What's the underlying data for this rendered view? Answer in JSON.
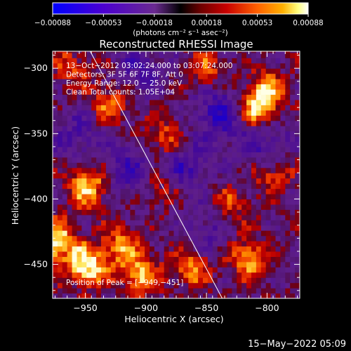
{
  "chart_data": {
    "type": "heatmap",
    "title": "Reconstructed RHESSI Image",
    "xlabel": "Heliocentric X (arcsec)",
    "ylabel": "Heliocentric Y (arcsec)",
    "xlim": [
      -977,
      -773
    ],
    "ylim": [
      -476,
      -287
    ],
    "x_ticks": [
      -950,
      -900,
      -850,
      -800
    ],
    "y_ticks": [
      -300,
      -350,
      -400,
      -450
    ],
    "x_tick_labels": [
      "−950",
      "−900",
      "−850",
      "−800"
    ],
    "y_tick_labels": [
      "−300",
      "−350",
      "−400",
      "−450"
    ],
    "colorbar": {
      "range": [
        -0.00088,
        0.00088
      ],
      "tick_values": [
        -0.00088,
        -0.00053,
        -0.00018,
        0.00018,
        0.00053,
        0.00088
      ],
      "tick_labels": [
        "−0.00088",
        "−0.00053",
        "−0.00018",
        "0.00018",
        "0.00053",
        "0.00088"
      ],
      "unit_label": "(photons cm⁻² s⁻¹ asec⁻²)",
      "colors": [
        "#0000ff",
        "#5500cc",
        "#7a2a9c",
        "#000000",
        "#6e0000",
        "#c80000",
        "#ff6000",
        "#ffb000",
        "#ffff80",
        "#ffffff"
      ]
    },
    "info_lines": [
      "13−Oct−2012 03:02:24.000 to 03:07:24.000",
      "Detectors: 3F 5F 6F 7F 8F, Att 0",
      "Energy Range: 12.0 − 25.0 keV",
      "Clean     Total counts: 1.05E+04"
    ],
    "peak_label": "Position of Peak = [−949,−451]",
    "peak_position": [
      -949,
      -451
    ],
    "limb_line": [
      [
        -946,
        -287
      ],
      [
        -837,
        -476
      ]
    ],
    "bright_sources": [
      {
        "x": -949,
        "y": -451,
        "level": 1.0
      },
      {
        "x": -975,
        "y": -432,
        "level": 0.95
      },
      {
        "x": -948,
        "y": -390,
        "level": 0.8
      },
      {
        "x": -905,
        "y": -459,
        "level": 0.8
      },
      {
        "x": -862,
        "y": -452,
        "level": 0.65
      },
      {
        "x": -815,
        "y": -445,
        "level": 0.7
      },
      {
        "x": -810,
        "y": -330,
        "level": 0.75
      },
      {
        "x": -800,
        "y": -318,
        "level": 0.6
      },
      {
        "x": -930,
        "y": -327,
        "level": 0.55
      },
      {
        "x": -885,
        "y": -355,
        "level": 0.55
      },
      {
        "x": -920,
        "y": -435,
        "level": 0.6
      },
      {
        "x": -885,
        "y": -390,
        "level": 0.45
      },
      {
        "x": -960,
        "y": -300,
        "level": 0.4
      },
      {
        "x": -850,
        "y": -300,
        "level": 0.45
      },
      {
        "x": -795,
        "y": -380,
        "level": 0.55
      },
      {
        "x": -830,
        "y": -405,
        "level": 0.4
      }
    ],
    "dim_regions": [
      {
        "x": -838,
        "y": -335,
        "level": 0.7
      },
      {
        "x": -872,
        "y": -375,
        "level": 0.6
      },
      {
        "x": -915,
        "y": -375,
        "level": 0.45
      },
      {
        "x": -955,
        "y": -350,
        "level": 0.4
      },
      {
        "x": -800,
        "y": -360,
        "level": 0.5
      },
      {
        "x": -850,
        "y": -425,
        "level": 0.35
      },
      {
        "x": -905,
        "y": -300,
        "level": 0.4
      }
    ]
  },
  "timestamp": "15−May−2022 05:09"
}
